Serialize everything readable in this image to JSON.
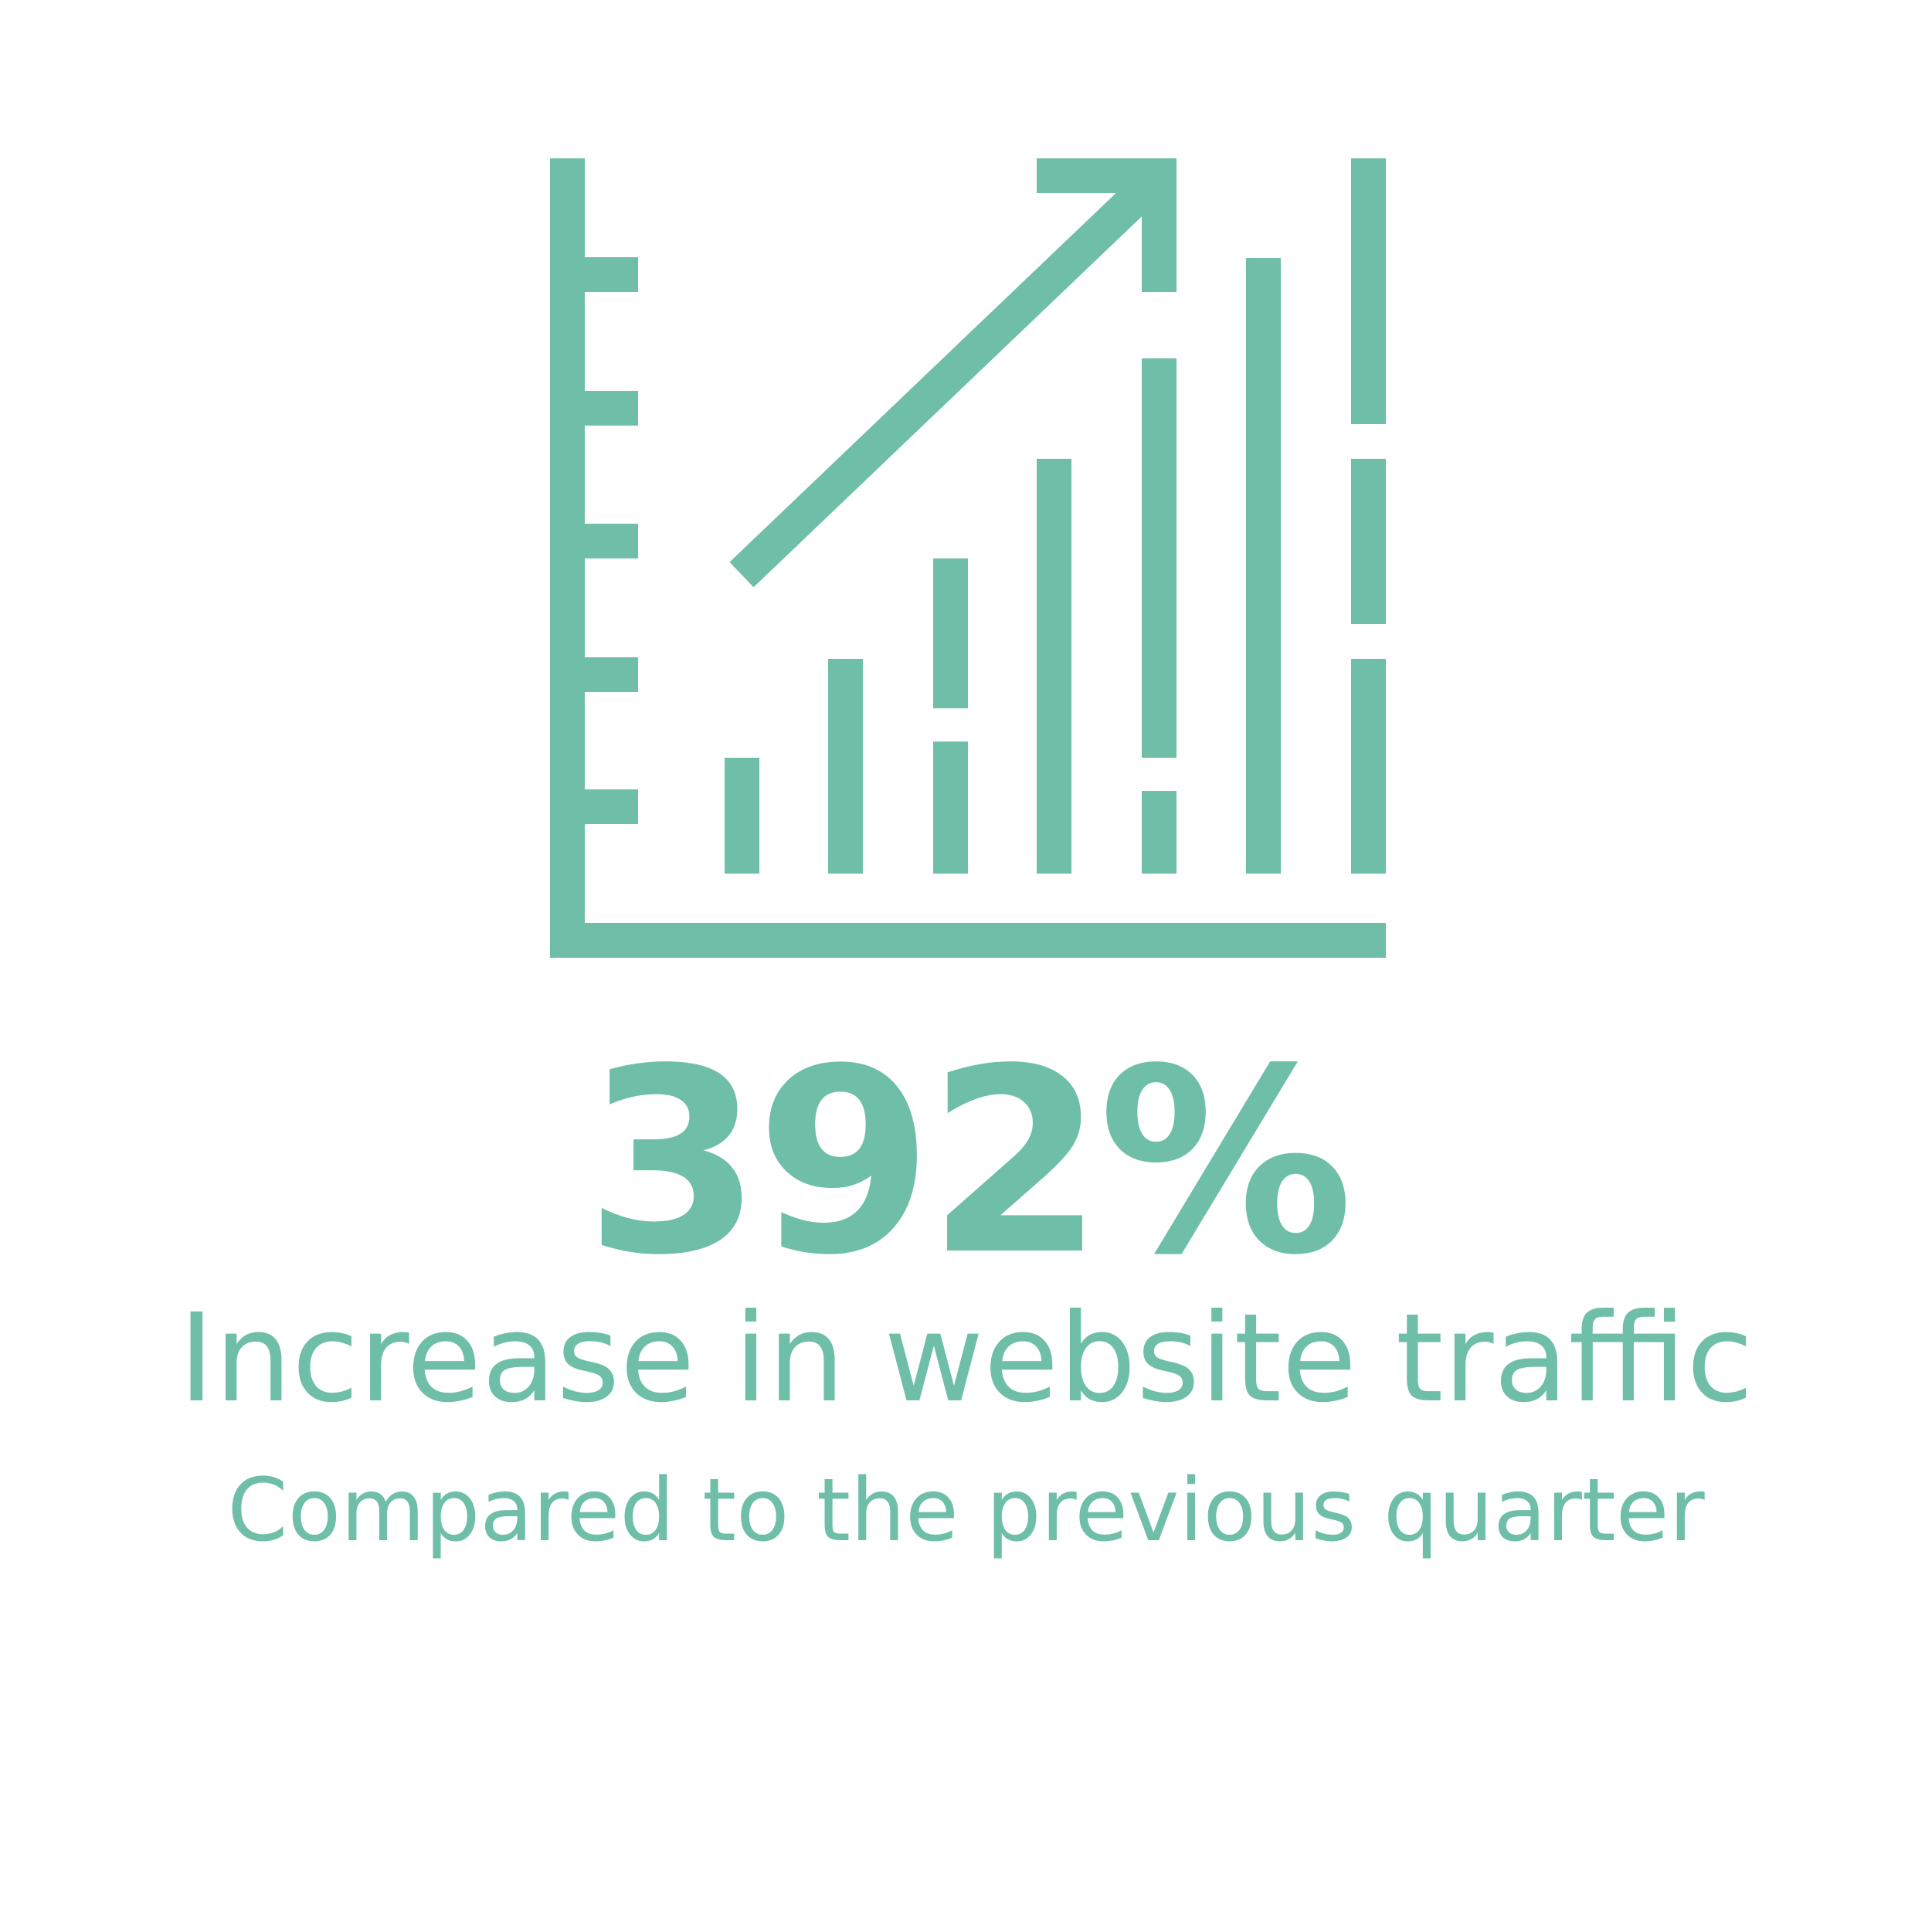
{
  "colors": {
    "accent": "#6fbfa8",
    "background": "#ffffff"
  },
  "icon": "bar-chart-growth-arrow-icon",
  "stat": {
    "value": "392%"
  },
  "headline": "Increase in website traffic",
  "subheadline": "Compared to the previous quarter"
}
